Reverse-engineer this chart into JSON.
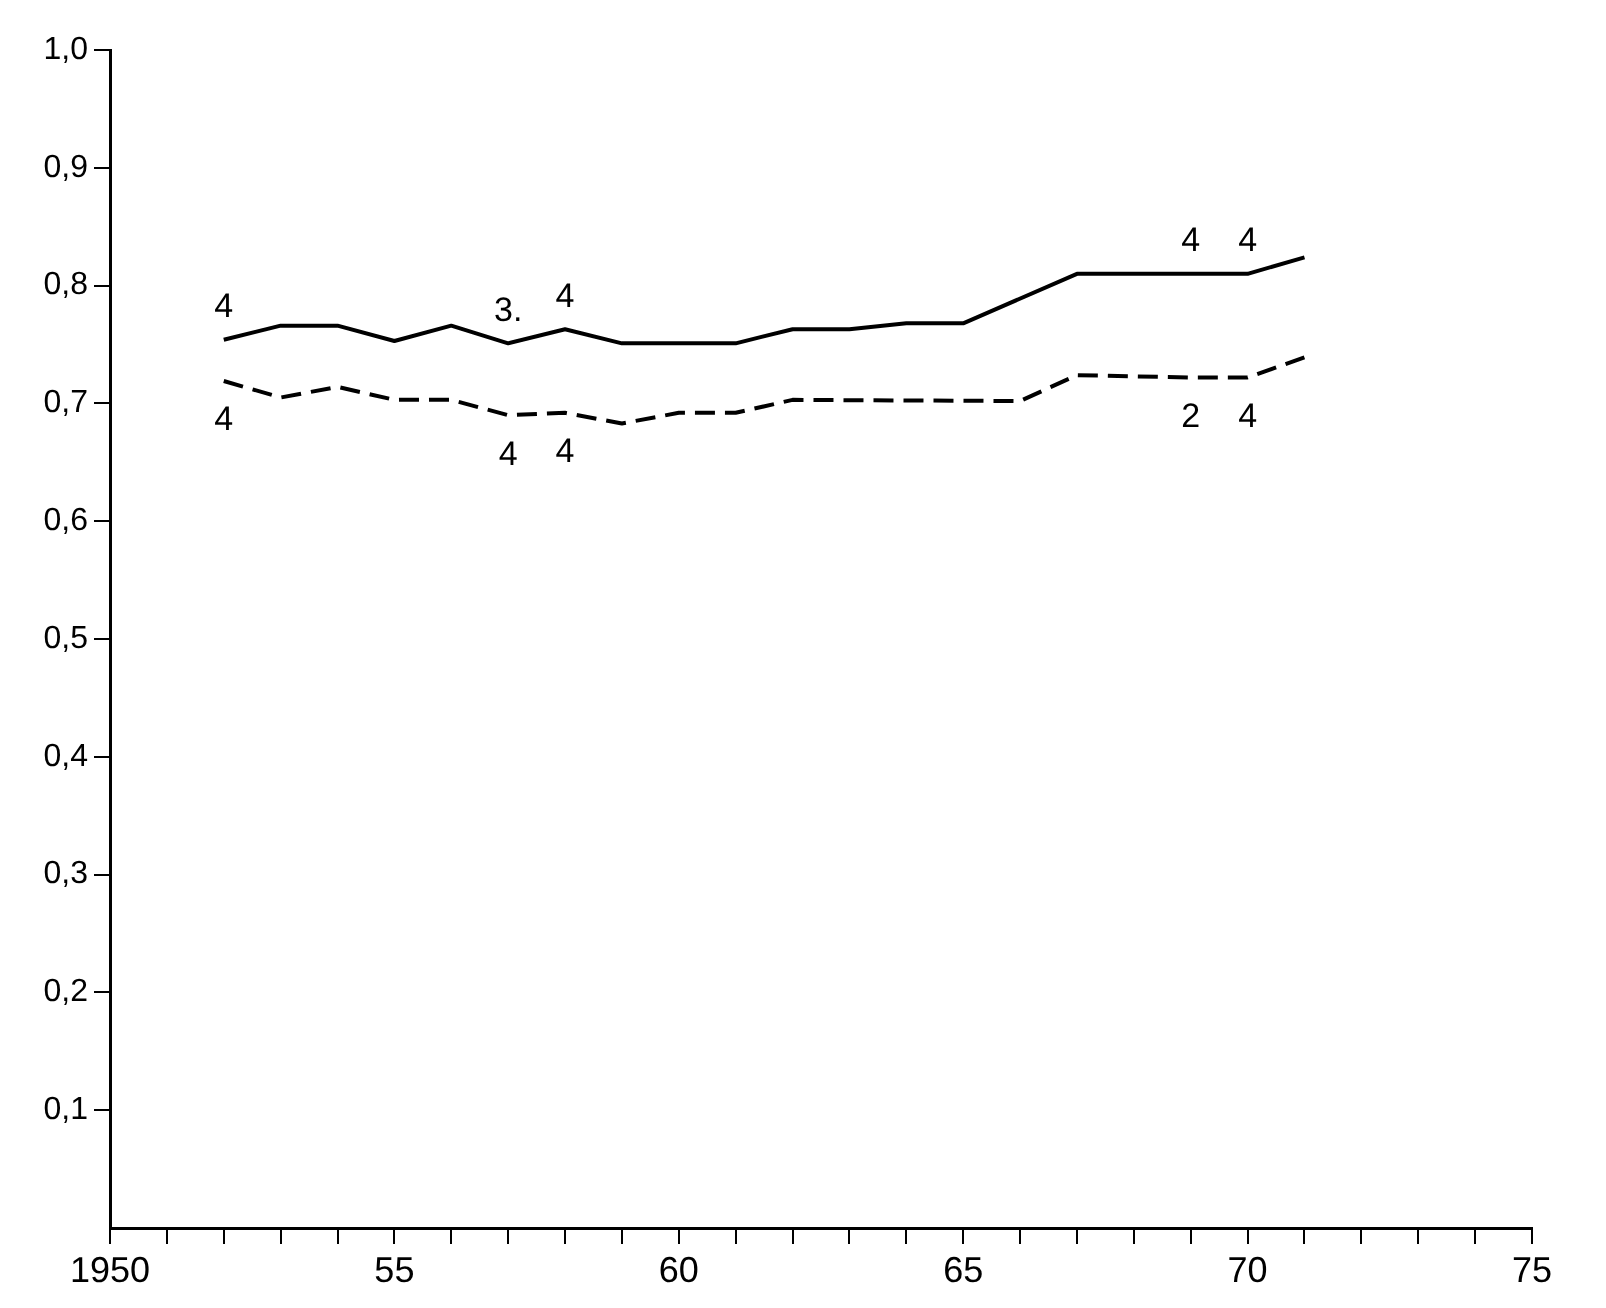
{
  "chart_data": {
    "type": "line",
    "xlim": [
      1950,
      1975
    ],
    "xticks": [
      {
        "value": 1950,
        "label": "1950"
      },
      {
        "value": 1951,
        "label": null
      },
      {
        "value": 1952,
        "label": null
      },
      {
        "value": 1953,
        "label": null
      },
      {
        "value": 1954,
        "label": null
      },
      {
        "value": 1955,
        "label": "55"
      },
      {
        "value": 1956,
        "label": null
      },
      {
        "value": 1957,
        "label": null
      },
      {
        "value": 1958,
        "label": null
      },
      {
        "value": 1959,
        "label": null
      },
      {
        "value": 1960,
        "label": "60"
      },
      {
        "value": 1961,
        "label": null
      },
      {
        "value": 1962,
        "label": null
      },
      {
        "value": 1963,
        "label": null
      },
      {
        "value": 1964,
        "label": null
      },
      {
        "value": 1965,
        "label": "65"
      },
      {
        "value": 1966,
        "label": null
      },
      {
        "value": 1967,
        "label": null
      },
      {
        "value": 1968,
        "label": null
      },
      {
        "value": 1969,
        "label": null
      },
      {
        "value": 1970,
        "label": "70"
      },
      {
        "value": 1971,
        "label": null
      },
      {
        "value": 1972,
        "label": null
      },
      {
        "value": 1973,
        "label": null
      },
      {
        "value": 1974,
        "label": null
      },
      {
        "value": 1975,
        "label": "75"
      }
    ],
    "ylim": [
      0,
      1
    ],
    "yticks": [
      {
        "value": 0.1,
        "label": "0,1"
      },
      {
        "value": 0.2,
        "label": "0,2"
      },
      {
        "value": 0.3,
        "label": "0,3"
      },
      {
        "value": 0.4,
        "label": "0,4"
      },
      {
        "value": 0.5,
        "label": "0,5"
      },
      {
        "value": 0.6,
        "label": "0,6"
      },
      {
        "value": 0.7,
        "label": "0,7"
      },
      {
        "value": 0.8,
        "label": "0,8"
      },
      {
        "value": 0.9,
        "label": "0,9"
      },
      {
        "value": 1.0,
        "label": "1,0"
      }
    ],
    "grid": false,
    "legend": false,
    "marker": "none",
    "series": [
      {
        "color": "#000000",
        "line_style": "solid",
        "x": [
          1952,
          1953,
          1954,
          1955,
          1956,
          1957,
          1958,
          1959,
          1961,
          1962,
          1963,
          1964,
          1965,
          1967,
          1969,
          1970,
          1971
        ],
        "values": [
          0.754,
          0.766,
          0.766,
          0.753,
          0.766,
          0.751,
          0.763,
          0.751,
          0.751,
          0.763,
          0.763,
          0.768,
          0.768,
          0.81,
          0.81,
          0.81,
          0.824
        ]
      },
      {
        "color": "#000000",
        "line_style": "dashed",
        "x": [
          1952,
          1953,
          1954,
          1955,
          1956,
          1957,
          1958,
          1959,
          1960,
          1961,
          1962,
          1966,
          1967,
          1969,
          1970,
          1971
        ],
        "values": [
          0.719,
          0.705,
          0.714,
          0.703,
          0.703,
          0.69,
          0.692,
          0.683,
          0.692,
          0.692,
          0.703,
          0.702,
          0.724,
          0.722,
          0.722,
          0.739
        ]
      }
    ],
    "annotations": [
      {
        "text": "4",
        "x": 1952,
        "y": 0.754
      },
      {
        "text": "3.",
        "x": 1957,
        "y": 0.751
      },
      {
        "text": "4",
        "x": 1958,
        "y": 0.763
      },
      {
        "text": "4",
        "x": 1969,
        "y": 0.81
      },
      {
        "text": "4",
        "x": 1970,
        "y": 0.81
      },
      {
        "text": "4",
        "x": 1952,
        "y": 0.719
      },
      {
        "text": "4",
        "x": 1957,
        "y": 0.69
      },
      {
        "text": "4",
        "x": 1958,
        "y": 0.692
      },
      {
        "text": "2",
        "x": 1969,
        "y": 0.722
      },
      {
        "text": "4",
        "x": 1970,
        "y": 0.722
      }
    ]
  }
}
